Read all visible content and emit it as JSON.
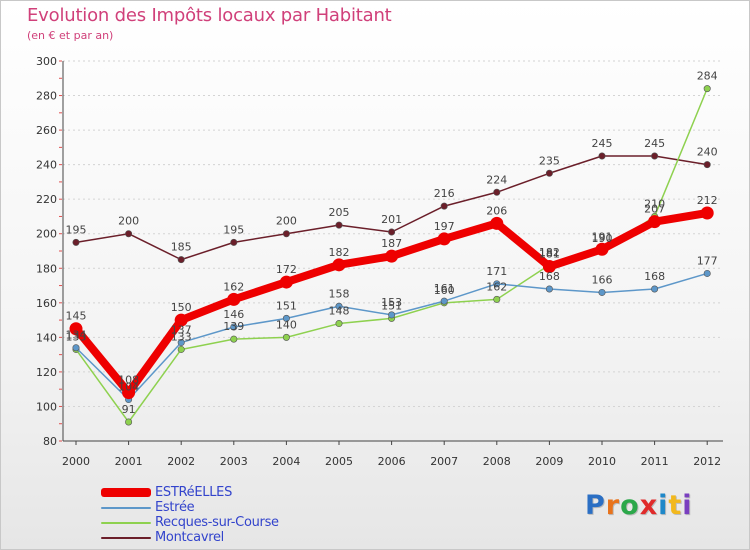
{
  "title": "Evolution des Impôts locaux par Habitant",
  "subtitle": "(en € et par an)",
  "logo": {
    "text": "Proxiti",
    "letter_colors": [
      "#2b6fc4",
      "#e8731c",
      "#2ba84a",
      "#e02a2a",
      "#1e88c9",
      "#f2b81d",
      "#7a3fbf"
    ]
  },
  "chart_data": {
    "type": "line",
    "title": "Evolution des Impôts locaux par Habitant",
    "subtitle": "(en € et par an)",
    "xlabel": "",
    "ylabel": "",
    "ylim": [
      80,
      300
    ],
    "yticks": [
      80,
      100,
      120,
      140,
      160,
      180,
      200,
      220,
      240,
      260,
      280,
      300
    ],
    "grid": "horizontal dashed",
    "legend_position": "bottom-left",
    "x": [
      2000,
      2001,
      2002,
      2003,
      2004,
      2005,
      2006,
      2007,
      2008,
      2009,
      2010,
      2011,
      2012
    ],
    "series": [
      {
        "name": "Montcavrel",
        "color": "#6b1f2a",
        "values": [
          195,
          200,
          185,
          195,
          200,
          205,
          201,
          216,
          224,
          235,
          245,
          245,
          240
        ]
      },
      {
        "name": "Recques-sur-Course",
        "color": "#8ed14f",
        "values": [
          133,
          91,
          133,
          139,
          140,
          148,
          151,
          160,
          162,
          182,
          190,
          210,
          284
        ]
      },
      {
        "name": "Estrée",
        "color": "#5d97c9",
        "values": [
          134,
          104,
          137,
          146,
          151,
          158,
          153,
          161,
          171,
          168,
          166,
          168,
          177
        ]
      },
      {
        "name": "ESTRéELLES",
        "color": "#ee0000",
        "values": [
          145,
          108,
          150,
          162,
          172,
          182,
          187,
          197,
          206,
          181,
          191,
          207,
          212
        ]
      }
    ],
    "data_labels": [
      {
        "series": "Montcavrel",
        "labels": [
          "195",
          "200",
          "185",
          "195",
          "200",
          "205",
          "201",
          "216",
          "224",
          "235",
          "245",
          "245",
          "240"
        ]
      },
      {
        "series": "Recques-sur-Course",
        "labels": [
          "133",
          "91",
          "133",
          "139",
          "140",
          "148",
          "151",
          "160",
          "162",
          "182",
          "190",
          "210",
          "284"
        ]
      },
      {
        "series": "Estrée",
        "labels": [
          "134",
          "104",
          "137",
          "146",
          "151",
          "158",
          "153",
          "161",
          "171",
          "168",
          "166",
          "168",
          "177"
        ]
      },
      {
        "series": "ESTRéELLES",
        "labels": [
          "145",
          "108",
          "150",
          "162",
          "172",
          "182",
          "187",
          "197",
          "206",
          "181",
          "191",
          "207",
          "212"
        ]
      }
    ]
  },
  "legend": {
    "items": [
      {
        "label": "ESTRéELLES",
        "color": "#ee0000",
        "weight": "thick"
      },
      {
        "label": "Estrée",
        "color": "#5d97c9",
        "weight": "thin"
      },
      {
        "label": "Recques-sur-Course",
        "color": "#8ed14f",
        "weight": "thin"
      },
      {
        "label": "Montcavrel",
        "color": "#6b1f2a",
        "weight": "thin"
      }
    ]
  }
}
